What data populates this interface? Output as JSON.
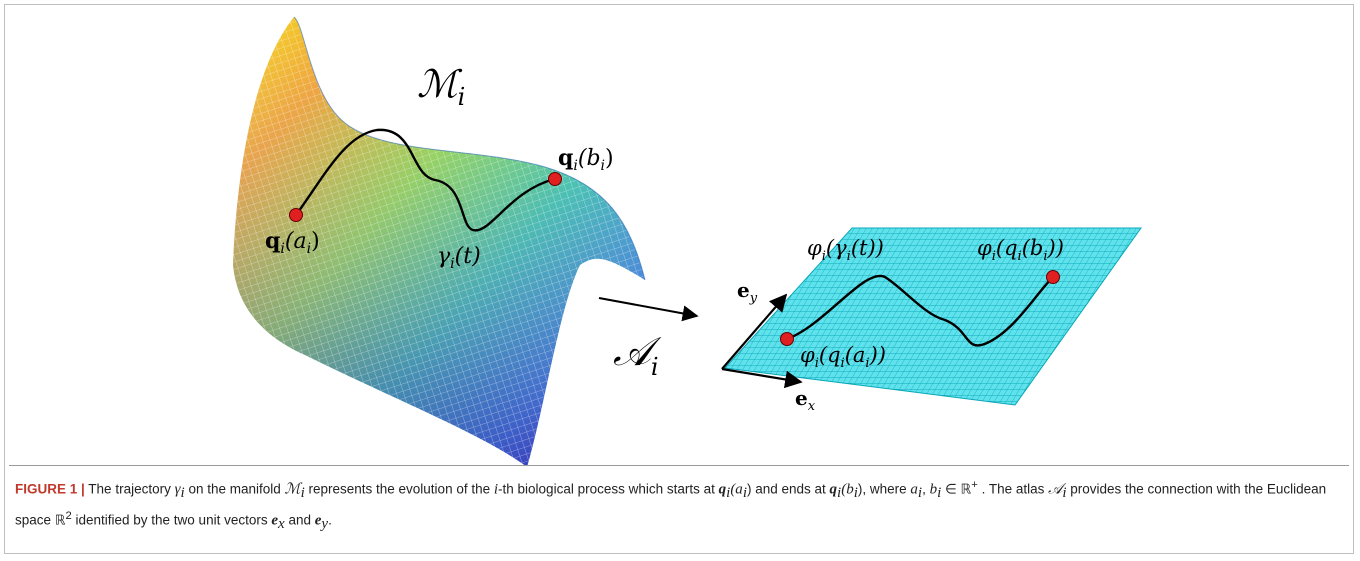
{
  "figure": {
    "labels": {
      "manifold": "ℳ",
      "manifold_sub": "i",
      "start_point": "q",
      "start_point_rest": "(a",
      "start_point_sub": "i",
      "end_point": "q",
      "end_point_rest": "(b",
      "end_point_sub": "i",
      "trajectory": "γ",
      "trajectory_sub": "i",
      "trajectory_arg": "(t)",
      "atlas": "𝒜",
      "atlas_sub": "i",
      "image_traj": "φ",
      "image_traj_rest": "(γ",
      "image_traj_end": "(t))",
      "image_start": "φ",
      "image_start_rest": "(q",
      "image_start_end": "(a",
      "image_end": "φ",
      "image_end_rest": "(q",
      "image_end_end": "(b",
      "sub_i": "i",
      "close1": ")",
      "close2": "))",
      "ex": "e",
      "ex_sub": "x",
      "ey": "e",
      "ey_sub": "y"
    },
    "colors": {
      "plane": "#22d0e0",
      "point": "#e02020",
      "curve": "#000000"
    }
  },
  "caption": {
    "fig_label": "FIGURE 1 |",
    "t1": " The trajectory ",
    "gamma": "γ",
    "gamma_sub": "i",
    "t2": " on the manifold ",
    "M": "ℳ",
    "M_sub": "i",
    "t3": " represents the evolution of the ",
    "i": "i",
    "t4": "-th biological process which starts at ",
    "q1": "q",
    "q1_sub": "i",
    "q1_arg": "(a",
    "q1_arg_sub": "i",
    "t5": ") and ends at ",
    "q2": "q",
    "q2_sub": "i",
    "q2_arg": "(b",
    "q2_arg_sub": "i",
    "t6": "), where ",
    "a": "a",
    "a_sub": "i",
    "t7": ", ",
    "b": "b",
    "b_sub": "i",
    "t8": " ∈ ℝ",
    "plus": "+",
    "t9": " . The atlas ",
    "A": "𝒜",
    "A_sub": "i",
    "t10": " provides the connection with the Euclidean space ℝ",
    "two": "2",
    "t11": " identified by the two unit vectors ",
    "ex": "e",
    "ex_sub": "x",
    "t12": " and ",
    "ey": "e",
    "ey_sub": "y",
    "t13": "."
  }
}
